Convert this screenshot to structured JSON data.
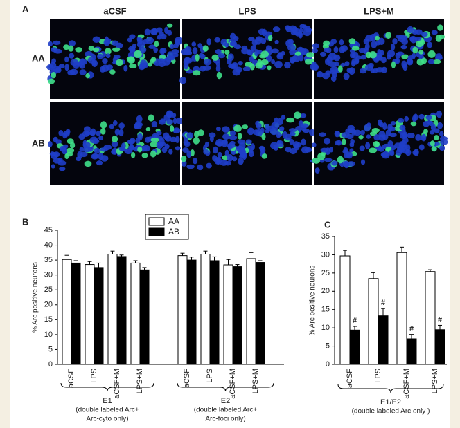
{
  "panel_a": {
    "label": "A",
    "columns": [
      "aCSF",
      "LPS",
      "LPS+M"
    ],
    "rows": [
      "AA",
      "AB"
    ]
  },
  "chart_data": [
    {
      "type": "bar",
      "panel": "B",
      "y_label": "% Arc positive neurons",
      "categories": [
        "aCSF",
        "LPS",
        "aCSF+M",
        "LPS+M",
        "aCSF",
        "LPS",
        "aCSF+M",
        "LPS+M"
      ],
      "series": [
        {
          "name": "AA",
          "color": "#ffffff",
          "values": [
            35.2,
            33.5,
            37,
            34,
            36.5,
            37,
            33.4,
            35.5
          ],
          "errors": [
            1.4,
            1,
            1,
            0.8,
            0.8,
            1,
            1.8,
            2
          ]
        },
        {
          "name": "AB",
          "color": "#000000",
          "values": [
            34,
            32.5,
            36.2,
            31.7,
            35,
            34.8,
            32.8,
            34.2
          ],
          "errors": [
            0.8,
            1.5,
            0.5,
            0.8,
            1,
            1.3,
            0.7,
            0.6
          ]
        }
      ],
      "groups": [
        {
          "name": "E1",
          "notes": [
            "(double labeled Arc+",
            "Arc-cyto only)"
          ]
        },
        {
          "name": "E2",
          "notes": [
            "(double labeled Arc+",
            "Arc-foci only)"
          ]
        }
      ],
      "ylim": [
        0,
        45
      ],
      "yticks": [
        0,
        5,
        10,
        15,
        20,
        25,
        30,
        35,
        40,
        45
      ],
      "legend": "top"
    },
    {
      "type": "bar",
      "panel": "C",
      "y_label": "% Arc positive neurons",
      "categories": [
        "aCSF",
        "LPS",
        "aCSF+M",
        "LPS+M"
      ],
      "series": [
        {
          "name": "AA",
          "color": "#ffffff",
          "values": [
            29.7,
            23.5,
            30.6,
            25.4
          ],
          "errors": [
            1.5,
            1.6,
            1.5,
            0.5
          ]
        },
        {
          "name": "AB",
          "color": "#000000",
          "values": [
            9.4,
            13.3,
            7,
            9.5
          ],
          "errors": [
            1,
            2,
            1.2,
            1.2
          ],
          "annotations": [
            "#",
            "#",
            "#",
            "#"
          ]
        }
      ],
      "groups": [
        {
          "name": "E1/E2",
          "notes": [
            "(double labeled Arc only )"
          ]
        }
      ],
      "ylim": [
        0,
        35
      ],
      "yticks": [
        0,
        5,
        10,
        15,
        20,
        25,
        30,
        35
      ]
    }
  ]
}
